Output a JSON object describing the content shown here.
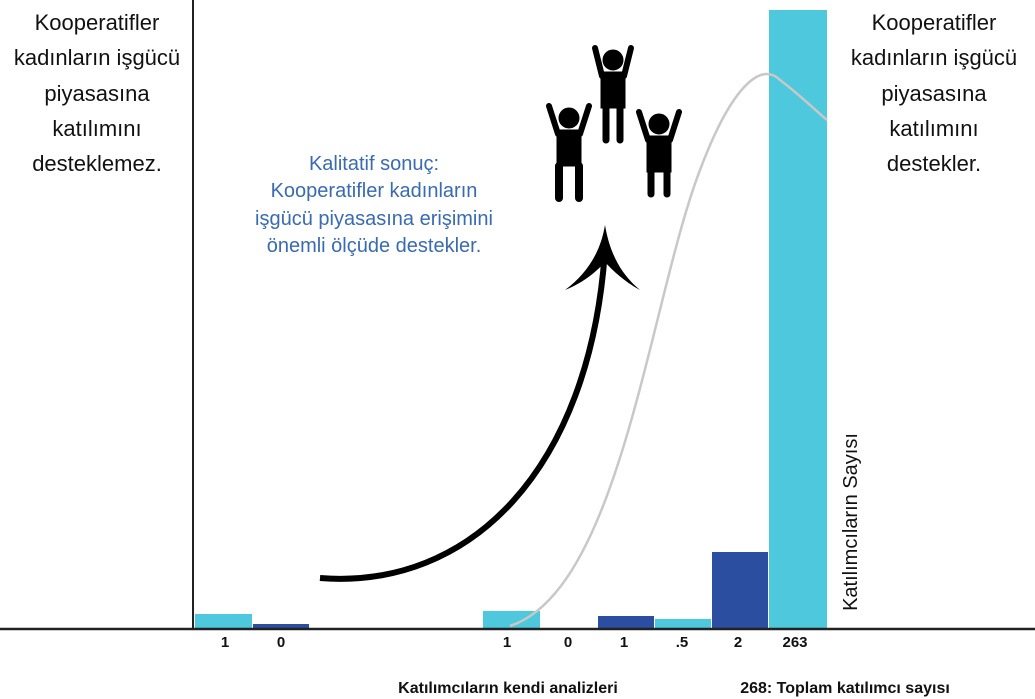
{
  "left_text": [
    "Kooperatifler",
    "kadınların işgücü",
    "piyasasına",
    "katılımını",
    "desteklemez."
  ],
  "right_text": [
    "Kooperatifler",
    "kadınların işgücü",
    "piyasasına",
    "katılımını",
    "destekler."
  ],
  "center_text": [
    "Kalitatif sonuç:",
    "Kooperatifler kadınların",
    "işgücü piyasasına erişimini",
    "önemli ölçüde destekler."
  ],
  "axis_label": "Katılımcıların Sayısı",
  "bar_labels": [
    "1",
    "0",
    "1",
    "0",
    "1",
    ".5",
    "2",
    "263"
  ],
  "footer": {
    "left": "Katılımcıların kendi analizleri",
    "right": "268: Toplam katılımcı sayısı"
  }
}
